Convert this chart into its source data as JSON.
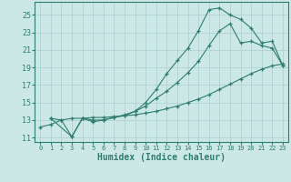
{
  "title": "",
  "xlabel": "Humidex (Indice chaleur)",
  "ylabel": "",
  "bg_color": "#cce8e6",
  "line_color": "#2e7d6e",
  "grid_color": "#aacece",
  "xlim": [
    -0.5,
    23.5
  ],
  "ylim": [
    10.5,
    26.5
  ],
  "yticks": [
    11,
    13,
    15,
    17,
    19,
    21,
    23,
    25
  ],
  "xticks": [
    0,
    1,
    2,
    3,
    4,
    5,
    6,
    7,
    8,
    9,
    10,
    11,
    12,
    13,
    14,
    15,
    16,
    17,
    18,
    19,
    20,
    21,
    22,
    23
  ],
  "line1_x": [
    0,
    1,
    2,
    3,
    4,
    5,
    6,
    7,
    8,
    9,
    10,
    11,
    12,
    13,
    14,
    15,
    16,
    17,
    18,
    19,
    20,
    21,
    22,
    23
  ],
  "line1_y": [
    12.2,
    12.5,
    13.0,
    13.2,
    13.2,
    13.3,
    13.3,
    13.4,
    13.5,
    13.6,
    13.8,
    14.0,
    14.3,
    14.6,
    15.0,
    15.4,
    15.9,
    16.5,
    17.1,
    17.7,
    18.3,
    18.8,
    19.2,
    19.4
  ],
  "line2_x": [
    1,
    2,
    3,
    4,
    5,
    6,
    7,
    8,
    9,
    10,
    11,
    12,
    13,
    14,
    15,
    16,
    17,
    18,
    19,
    20,
    21,
    22,
    23
  ],
  "line2_y": [
    13.2,
    13.0,
    11.1,
    13.2,
    12.8,
    13.0,
    13.3,
    13.6,
    14.0,
    14.6,
    15.5,
    16.3,
    17.3,
    18.4,
    19.7,
    21.5,
    23.2,
    24.0,
    21.8,
    22.0,
    21.5,
    21.2,
    19.2
  ],
  "line3_x": [
    1,
    3,
    4,
    5,
    6,
    7,
    8,
    9,
    10,
    11,
    12,
    13,
    14,
    15,
    16,
    17,
    18,
    19,
    20,
    21,
    22,
    23
  ],
  "line3_y": [
    13.2,
    11.1,
    13.2,
    13.0,
    13.0,
    13.3,
    13.5,
    14.0,
    15.0,
    16.5,
    18.3,
    19.8,
    21.2,
    23.2,
    25.6,
    25.8,
    25.0,
    24.5,
    23.5,
    21.8,
    22.0,
    19.2
  ]
}
